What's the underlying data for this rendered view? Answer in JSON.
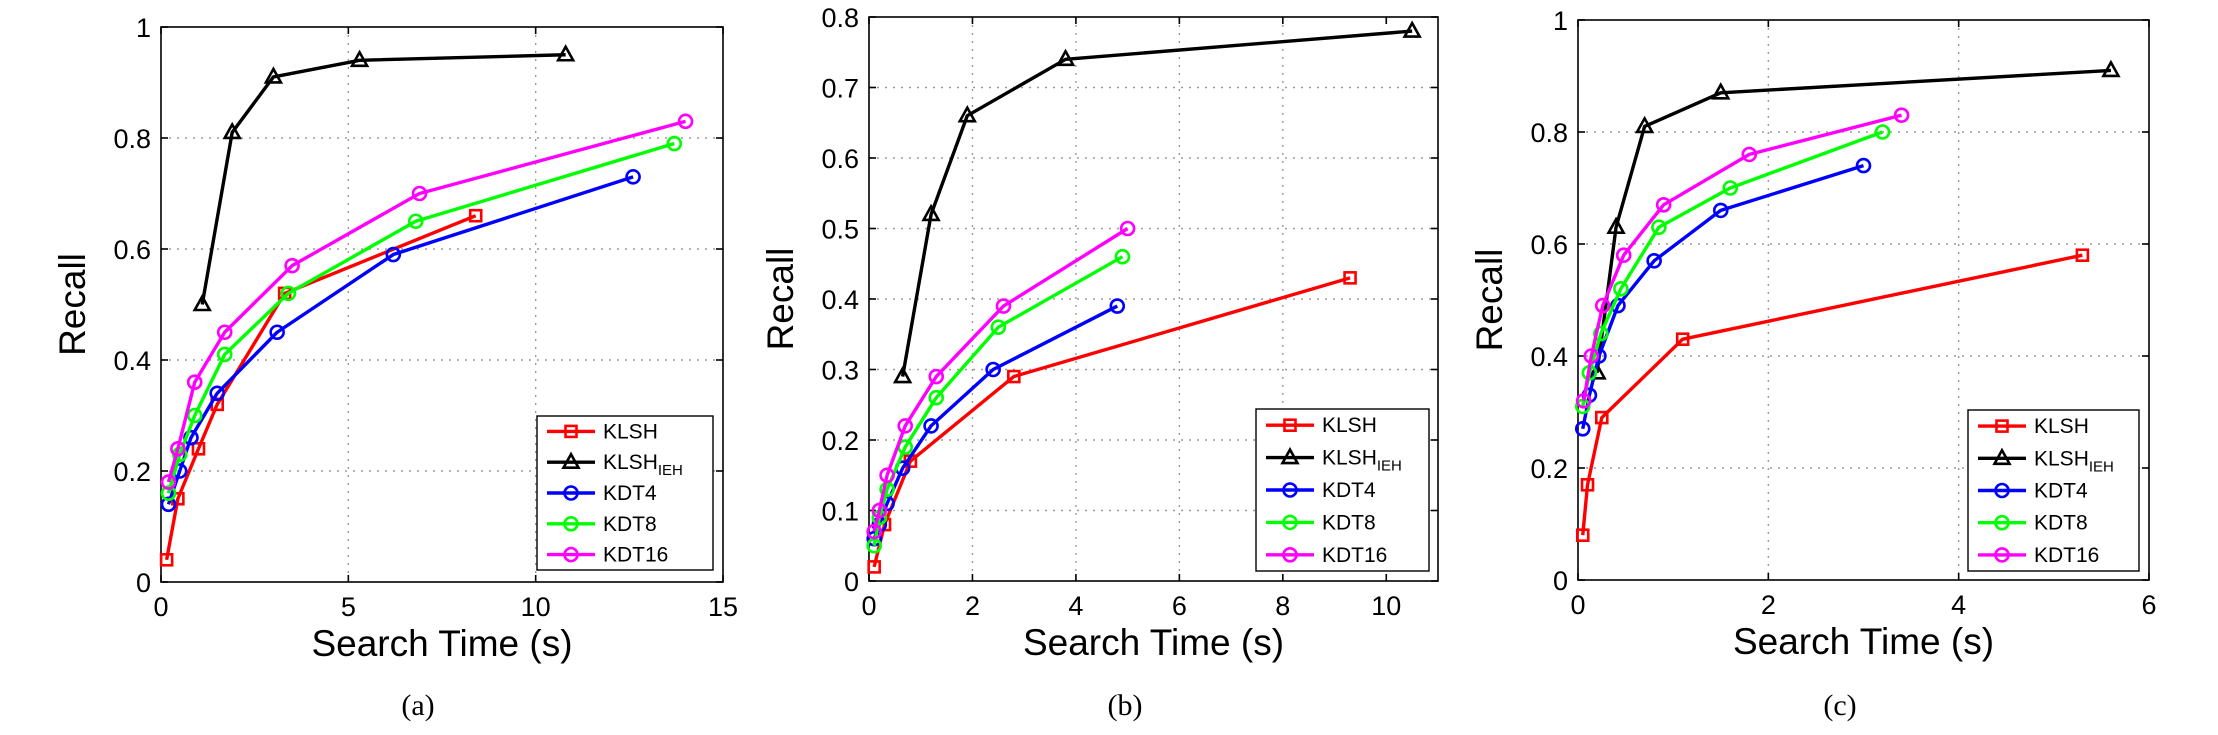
{
  "chart_data": [
    {
      "type": "line",
      "caption": "(a)",
      "xlabel": "Search Time (s)",
      "ylabel": "Recall",
      "xlim": [
        0,
        15
      ],
      "ylim": [
        0,
        1
      ],
      "xticks": [
        0,
        5,
        10,
        15
      ],
      "yticks": [
        0,
        0.2,
        0.4,
        0.6,
        0.8,
        1
      ],
      "ytick_labels": [
        "0",
        "0.2",
        "0.4",
        "0.6",
        "0.8",
        "1"
      ],
      "grid": true,
      "legend_position": "bottom-right",
      "series": [
        {
          "name": "KLSH",
          "color": "#ff0000",
          "marker": "square",
          "x": [
            0.15,
            0.45,
            1.0,
            1.5,
            3.3,
            8.4
          ],
          "y": [
            0.04,
            0.15,
            0.24,
            0.32,
            0.52,
            0.66
          ]
        },
        {
          "name": "KLSH",
          "sub": "IEH",
          "color": "#000000",
          "marker": "triangle",
          "x": [
            1.1,
            1.9,
            3.0,
            5.3,
            10.8
          ],
          "y": [
            0.5,
            0.81,
            0.91,
            0.94,
            0.95
          ]
        },
        {
          "name": "KDT4",
          "color": "#0000ff",
          "marker": "circle",
          "x": [
            0.2,
            0.5,
            0.8,
            1.5,
            3.1,
            6.2,
            12.6
          ],
          "y": [
            0.14,
            0.2,
            0.26,
            0.34,
            0.45,
            0.59,
            0.73
          ]
        },
        {
          "name": "KDT8",
          "color": "#00ff00",
          "marker": "circle",
          "x": [
            0.2,
            0.5,
            0.9,
            1.7,
            3.4,
            6.8,
            13.7
          ],
          "y": [
            0.16,
            0.23,
            0.3,
            0.41,
            0.52,
            0.65,
            0.79
          ]
        },
        {
          "name": "KDT16",
          "color": "#ff00ff",
          "marker": "circle",
          "x": [
            0.2,
            0.45,
            0.9,
            1.7,
            3.5,
            6.9,
            14.0
          ],
          "y": [
            0.18,
            0.24,
            0.36,
            0.45,
            0.57,
            0.7,
            0.83
          ]
        }
      ]
    },
    {
      "type": "line",
      "caption": "(b)",
      "xlabel": "Search Time (s)",
      "ylabel": "Recall",
      "xlim": [
        0,
        11
      ],
      "ylim": [
        0,
        0.8
      ],
      "xticks": [
        0,
        2,
        4,
        6,
        8,
        10
      ],
      "yticks": [
        0,
        0.1,
        0.2,
        0.3,
        0.4,
        0.5,
        0.6,
        0.7,
        0.8
      ],
      "ytick_labels": [
        "0",
        "0.1",
        "0.2",
        "0.3",
        "0.4",
        "0.5",
        "0.6",
        "0.7",
        "0.8"
      ],
      "grid": true,
      "legend_position": "bottom-right",
      "series": [
        {
          "name": "KLSH",
          "color": "#ff0000",
          "marker": "square",
          "x": [
            0.1,
            0.3,
            0.8,
            2.8,
            9.3
          ],
          "y": [
            0.02,
            0.08,
            0.17,
            0.29,
            0.43
          ]
        },
        {
          "name": "KLSH",
          "sub": "IEH",
          "color": "#000000",
          "marker": "triangle",
          "x": [
            0.65,
            1.2,
            1.9,
            3.8,
            10.5
          ],
          "y": [
            0.29,
            0.52,
            0.66,
            0.74,
            0.78
          ]
        },
        {
          "name": "KDT4",
          "color": "#0000ff",
          "marker": "circle",
          "x": [
            0.1,
            0.2,
            0.35,
            0.65,
            1.2,
            2.4,
            4.8
          ],
          "y": [
            0.06,
            0.08,
            0.11,
            0.16,
            0.22,
            0.3,
            0.39
          ]
        },
        {
          "name": "KDT8",
          "color": "#00ff00",
          "marker": "circle",
          "x": [
            0.1,
            0.2,
            0.35,
            0.7,
            1.3,
            2.5,
            4.9
          ],
          "y": [
            0.05,
            0.09,
            0.13,
            0.19,
            0.26,
            0.36,
            0.46
          ]
        },
        {
          "name": "KDT16",
          "color": "#ff00ff",
          "marker": "circle",
          "x": [
            0.1,
            0.2,
            0.35,
            0.7,
            1.3,
            2.6,
            5.0
          ],
          "y": [
            0.07,
            0.1,
            0.15,
            0.22,
            0.29,
            0.39,
            0.5
          ]
        }
      ]
    },
    {
      "type": "line",
      "caption": "(c)",
      "xlabel": "Search Time (s)",
      "ylabel": "Recall",
      "xlim": [
        0,
        6
      ],
      "ylim": [
        0,
        1
      ],
      "xticks": [
        0,
        2,
        4,
        6
      ],
      "yticks": [
        0,
        0.2,
        0.4,
        0.6,
        0.8,
        1
      ],
      "ytick_labels": [
        "0",
        "0.2",
        "0.4",
        "0.6",
        "0.8",
        "1"
      ],
      "grid": true,
      "legend_position": "bottom-right",
      "series": [
        {
          "name": "KLSH",
          "color": "#ff0000",
          "marker": "square",
          "x": [
            0.05,
            0.1,
            0.25,
            1.1,
            5.3
          ],
          "y": [
            0.08,
            0.17,
            0.29,
            0.43,
            0.58
          ]
        },
        {
          "name": "KLSH",
          "sub": "IEH",
          "color": "#000000",
          "marker": "triangle",
          "x": [
            0.2,
            0.4,
            0.7,
            1.5,
            5.6
          ],
          "y": [
            0.37,
            0.63,
            0.81,
            0.87,
            0.91
          ]
        },
        {
          "name": "KDT4",
          "color": "#0000ff",
          "marker": "circle",
          "x": [
            0.05,
            0.12,
            0.22,
            0.42,
            0.8,
            1.5,
            3.0
          ],
          "y": [
            0.27,
            0.33,
            0.4,
            0.49,
            0.57,
            0.66,
            0.74
          ]
        },
        {
          "name": "KDT8",
          "color": "#00ff00",
          "marker": "circle",
          "x": [
            0.05,
            0.12,
            0.24,
            0.45,
            0.85,
            1.6,
            3.2
          ],
          "y": [
            0.31,
            0.37,
            0.44,
            0.52,
            0.63,
            0.7,
            0.8
          ]
        },
        {
          "name": "KDT16",
          "color": "#ff00ff",
          "marker": "circle",
          "x": [
            0.06,
            0.14,
            0.26,
            0.48,
            0.9,
            1.8,
            3.4
          ],
          "y": [
            0.32,
            0.4,
            0.49,
            0.58,
            0.67,
            0.76,
            0.83
          ]
        }
      ]
    }
  ]
}
